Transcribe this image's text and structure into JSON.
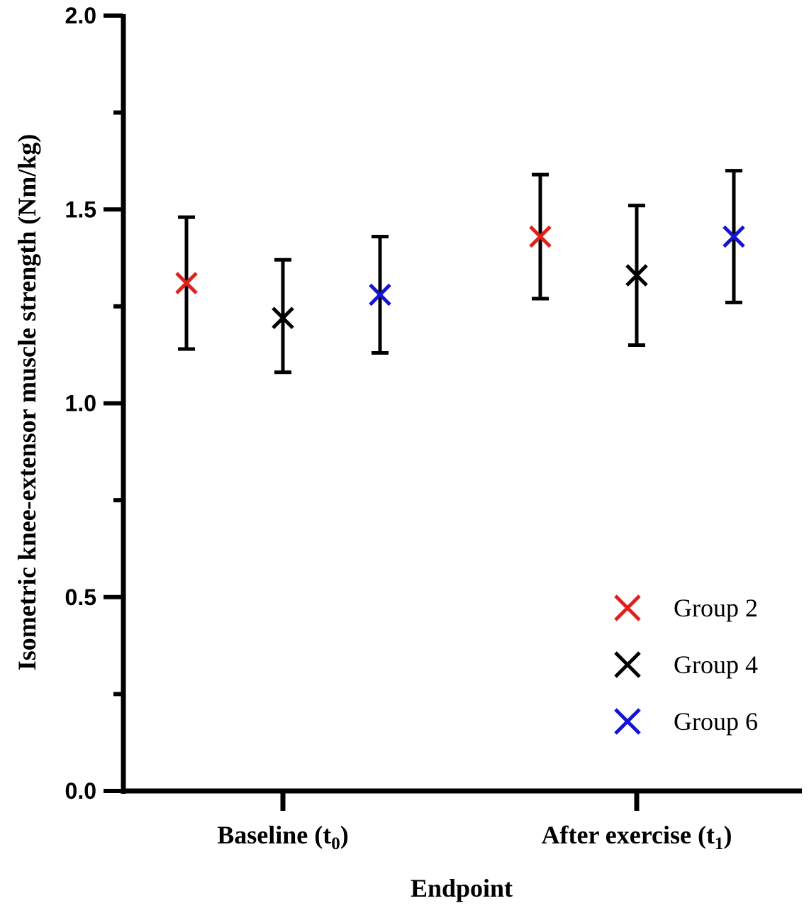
{
  "chart_data": {
    "type": "scatter",
    "title": "",
    "xlabel": "Endpoint",
    "ylabel": "Isometric knee-extensor muscle strength (Nm/kg)",
    "ylim": [
      0,
      2.0
    ],
    "yticks": [
      "0.0",
      "0.5",
      "1.0",
      "1.5",
      "2.0"
    ],
    "categories": [
      {
        "base": "Baseline (t",
        "sub": "0",
        "end": ")"
      },
      {
        "base": "After exercise (t",
        "sub": "1",
        "end": ")"
      }
    ],
    "grid": false,
    "legend_position": "bottom-right",
    "error_bars": true,
    "series": [
      {
        "name": "Group 2",
        "color": "#e0201b",
        "marker": "x",
        "values": [
          1.31,
          1.43
        ],
        "err_low": [
          1.14,
          1.27
        ],
        "err_high": [
          1.48,
          1.59
        ]
      },
      {
        "name": "Group 4",
        "color": "#000000",
        "marker": "x",
        "values": [
          1.22,
          1.33
        ],
        "err_low": [
          1.08,
          1.15
        ],
        "err_high": [
          1.37,
          1.51
        ]
      },
      {
        "name": "Group 6",
        "color": "#1515d0",
        "marker": "x",
        "values": [
          1.28,
          1.43
        ],
        "err_low": [
          1.13,
          1.26
        ],
        "err_high": [
          1.43,
          1.6
        ]
      }
    ]
  }
}
